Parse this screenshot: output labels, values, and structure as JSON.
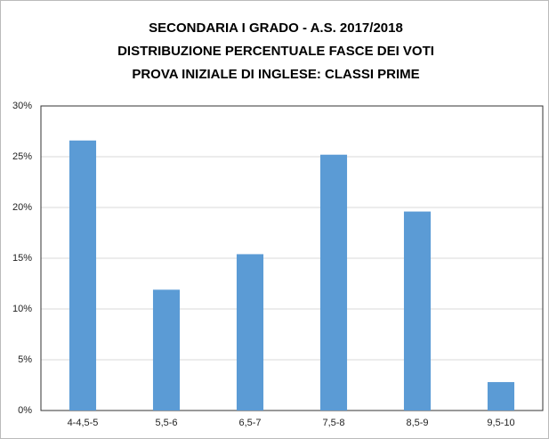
{
  "chart_data": {
    "type": "bar",
    "title": [
      "SECONDARIA I GRADO - A.S. 2017/2018",
      "DISTRIBUZIONE PERCENTUALE FASCE DEI VOTI",
      "PROVA INIZIALE DI INGLESE: CLASSI PRIME"
    ],
    "categories": [
      "4-4,5-5",
      "5,5-6",
      "6,5-7",
      "7,5-8",
      "8,5-9",
      "9,5-10"
    ],
    "values": [
      26.6,
      11.9,
      15.4,
      25.2,
      19.6,
      2.8
    ],
    "color": "#5b9bd5",
    "ylim": [
      0,
      30
    ],
    "yticks": [
      {
        "value": 0,
        "label": "0%"
      },
      {
        "value": 5,
        "label": "5%"
      },
      {
        "value": 10,
        "label": "10%"
      },
      {
        "value": 15,
        "label": "15%"
      },
      {
        "value": 20,
        "label": "20%"
      },
      {
        "value": 25,
        "label": "25%"
      },
      {
        "value": 30,
        "label": "30%"
      }
    ],
    "grid": true
  }
}
